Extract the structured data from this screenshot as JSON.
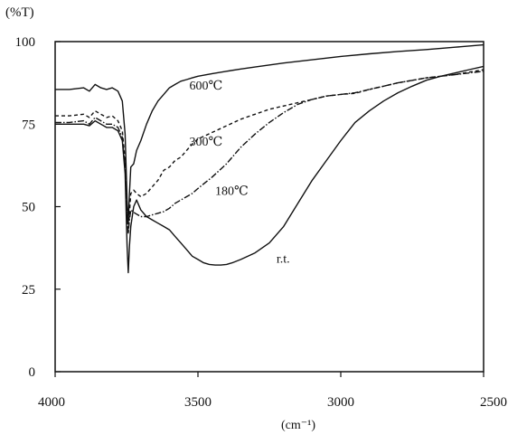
{
  "chart_data": {
    "type": "line",
    "title": "",
    "xlabel": "(cm⁻¹)",
    "ylabel": "(%T)",
    "xlim": [
      4000,
      2500
    ],
    "ylim": [
      0,
      100
    ],
    "x_ticks": [
      4000,
      3500,
      3000,
      2500
    ],
    "y_ticks": [
      0,
      25,
      50,
      75,
      100
    ],
    "grid": false,
    "legend": "none",
    "series": [
      {
        "name": "600℃",
        "style": "solid",
        "x": [
          4000,
          3950,
          3900,
          3880,
          3860,
          3840,
          3820,
          3800,
          3780,
          3765,
          3755,
          3748,
          3744,
          3740,
          3735,
          3725,
          3715,
          3700,
          3680,
          3660,
          3640,
          3620,
          3600,
          3580,
          3560,
          3540,
          3520,
          3500,
          3450,
          3400,
          3350,
          3300,
          3200,
          3100,
          3000,
          2900,
          2800,
          2700,
          2600,
          2500
        ],
        "y": [
          85.5,
          85.5,
          86,
          85,
          87,
          86,
          85.5,
          86,
          85,
          82,
          72,
          52,
          45,
          54,
          62,
          63,
          67,
          70,
          75,
          79,
          82,
          84,
          86,
          87,
          88,
          88.5,
          89,
          89.5,
          90.3,
          91,
          91.7,
          92.3,
          93.5,
          94.5,
          95.5,
          96.3,
          97,
          97.6,
          98.3,
          99
        ]
      },
      {
        "name": "300℃",
        "style": "dashed",
        "x": [
          4000,
          3950,
          3900,
          3880,
          3860,
          3840,
          3820,
          3800,
          3780,
          3765,
          3755,
          3748,
          3744,
          3740,
          3735,
          3725,
          3715,
          3700,
          3680,
          3660,
          3640,
          3620,
          3600,
          3580,
          3560,
          3540,
          3520,
          3500,
          3450,
          3400,
          3350,
          3300,
          3250,
          3200,
          3150,
          3100,
          3050,
          3000,
          2950,
          2900,
          2850,
          2800,
          2700,
          2600,
          2500
        ],
        "y": [
          77.5,
          77.5,
          78,
          77,
          79,
          78,
          77,
          77.5,
          76,
          73,
          64,
          47,
          42,
          48,
          54,
          55,
          54,
          53,
          54,
          56,
          58,
          61,
          62,
          64,
          65,
          67,
          69,
          70.5,
          72.5,
          74.5,
          76.5,
          78,
          79.5,
          80.5,
          81.5,
          82.5,
          83.5,
          84,
          84.3,
          85.5,
          86.5,
          87.5,
          89,
          90,
          91.5
        ]
      },
      {
        "name": "180℃",
        "style": "dash-dot",
        "x": [
          4000,
          3950,
          3900,
          3880,
          3860,
          3840,
          3820,
          3800,
          3780,
          3765,
          3755,
          3748,
          3744,
          3740,
          3735,
          3720,
          3700,
          3680,
          3660,
          3640,
          3620,
          3600,
          3580,
          3560,
          3540,
          3520,
          3500,
          3450,
          3400,
          3350,
          3300,
          3250,
          3200,
          3150,
          3100,
          3050,
          3000,
          2950,
          2900,
          2850,
          2800,
          2700,
          2600,
          2500
        ],
        "y": [
          75.5,
          75.5,
          76,
          75,
          77,
          76,
          75,
          75,
          74,
          71,
          62,
          46,
          42,
          46,
          49,
          48,
          47,
          47,
          47.5,
          48,
          48.5,
          49.5,
          51,
          52,
          53,
          54,
          55.5,
          59,
          63,
          68,
          72,
          75.5,
          78.5,
          81,
          82.5,
          83.5,
          84,
          84.5,
          85.5,
          86.5,
          87.5,
          89,
          90,
          91
        ]
      },
      {
        "name": "r.t.",
        "style": "solid",
        "x": [
          4000,
          3950,
          3900,
          3880,
          3860,
          3840,
          3820,
          3800,
          3780,
          3765,
          3755,
          3748,
          3744,
          3740,
          3735,
          3725,
          3715,
          3700,
          3680,
          3660,
          3640,
          3620,
          3600,
          3580,
          3560,
          3540,
          3520,
          3500,
          3480,
          3460,
          3440,
          3420,
          3400,
          3380,
          3350,
          3300,
          3250,
          3200,
          3150,
          3100,
          3050,
          3000,
          2950,
          2900,
          2850,
          2800,
          2750,
          2700,
          2650,
          2600,
          2550,
          2500
        ],
        "y": [
          75,
          75,
          75,
          74.5,
          76,
          75,
          74,
          74,
          73,
          70,
          60,
          38,
          30,
          38,
          44,
          50,
          52,
          49,
          47,
          46,
          45,
          44,
          43,
          41,
          39,
          37,
          35,
          34,
          33,
          32.5,
          32.3,
          32.3,
          32.5,
          33,
          34,
          36,
          39,
          44,
          51,
          58,
          64,
          70,
          75.5,
          79,
          82,
          84.5,
          86.5,
          88.3,
          89.5,
          90.5,
          91.5,
          92.5
        ]
      }
    ],
    "annotations": [
      {
        "text": "600℃",
        "x": 3530,
        "y": 85.5
      },
      {
        "text": "300℃",
        "x": 3530,
        "y": 68.5
      },
      {
        "text": "180℃",
        "x": 3440,
        "y": 53.5
      },
      {
        "text": "r.t.",
        "x": 3225,
        "y": 33
      }
    ]
  }
}
